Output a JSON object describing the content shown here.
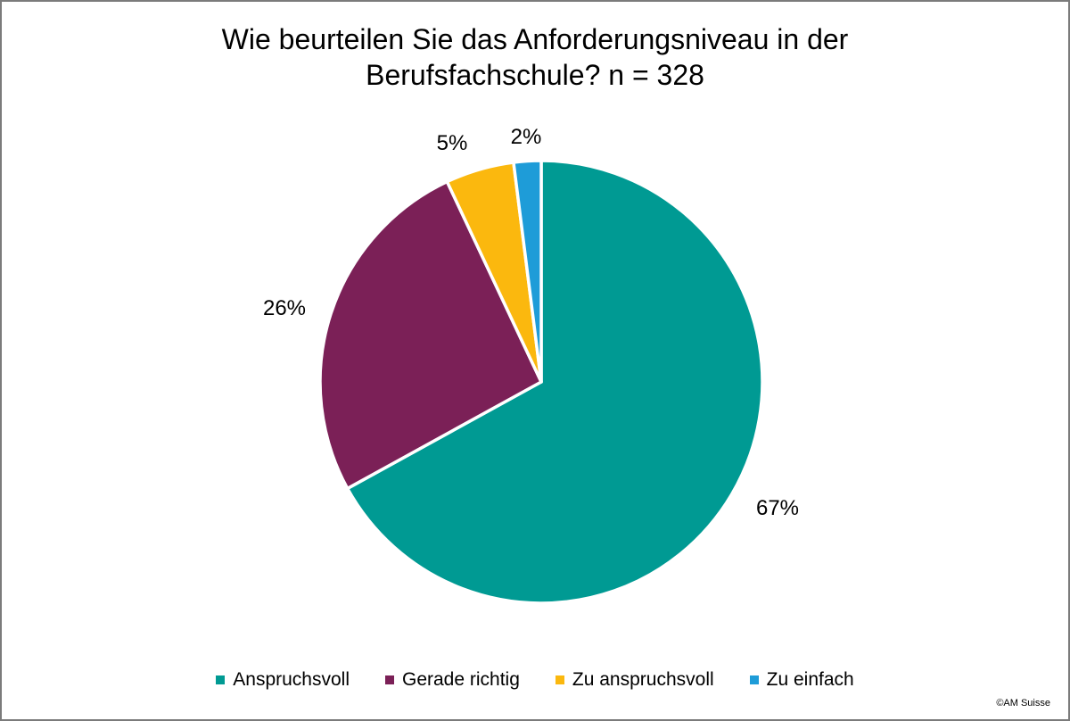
{
  "chart_data": {
    "type": "pie",
    "title": "Wie beurteilen Sie das Anforderungsniveau in der Berufsfachschule? n = 328",
    "title_lines": [
      "Wie beurteilen Sie das Anforderungsniveau in der",
      "Berufsfachschule? n = 328"
    ],
    "n": 328,
    "categories": [
      "Anspruchsvoll",
      "Gerade richtig",
      "Zu anspruchsvoll",
      "Zu einfach"
    ],
    "values": [
      67,
      26,
      5,
      2
    ],
    "unit": "%",
    "slice_labels": [
      "67%",
      "26%",
      "5%",
      "2%"
    ],
    "colors": [
      "#009A93",
      "#7B2057",
      "#FBB80E",
      "#1E9CD8"
    ],
    "slice_border_color": "#FFFFFF",
    "start_angle_deg": 0,
    "direction": "clockwise",
    "legend_position": "bottom",
    "legend": [
      "Anspruchsvoll",
      "Gerade richtig",
      "Zu anspruchsvoll",
      "Zu einfach"
    ]
  },
  "footer": {
    "copyright": "©AM Suisse"
  }
}
